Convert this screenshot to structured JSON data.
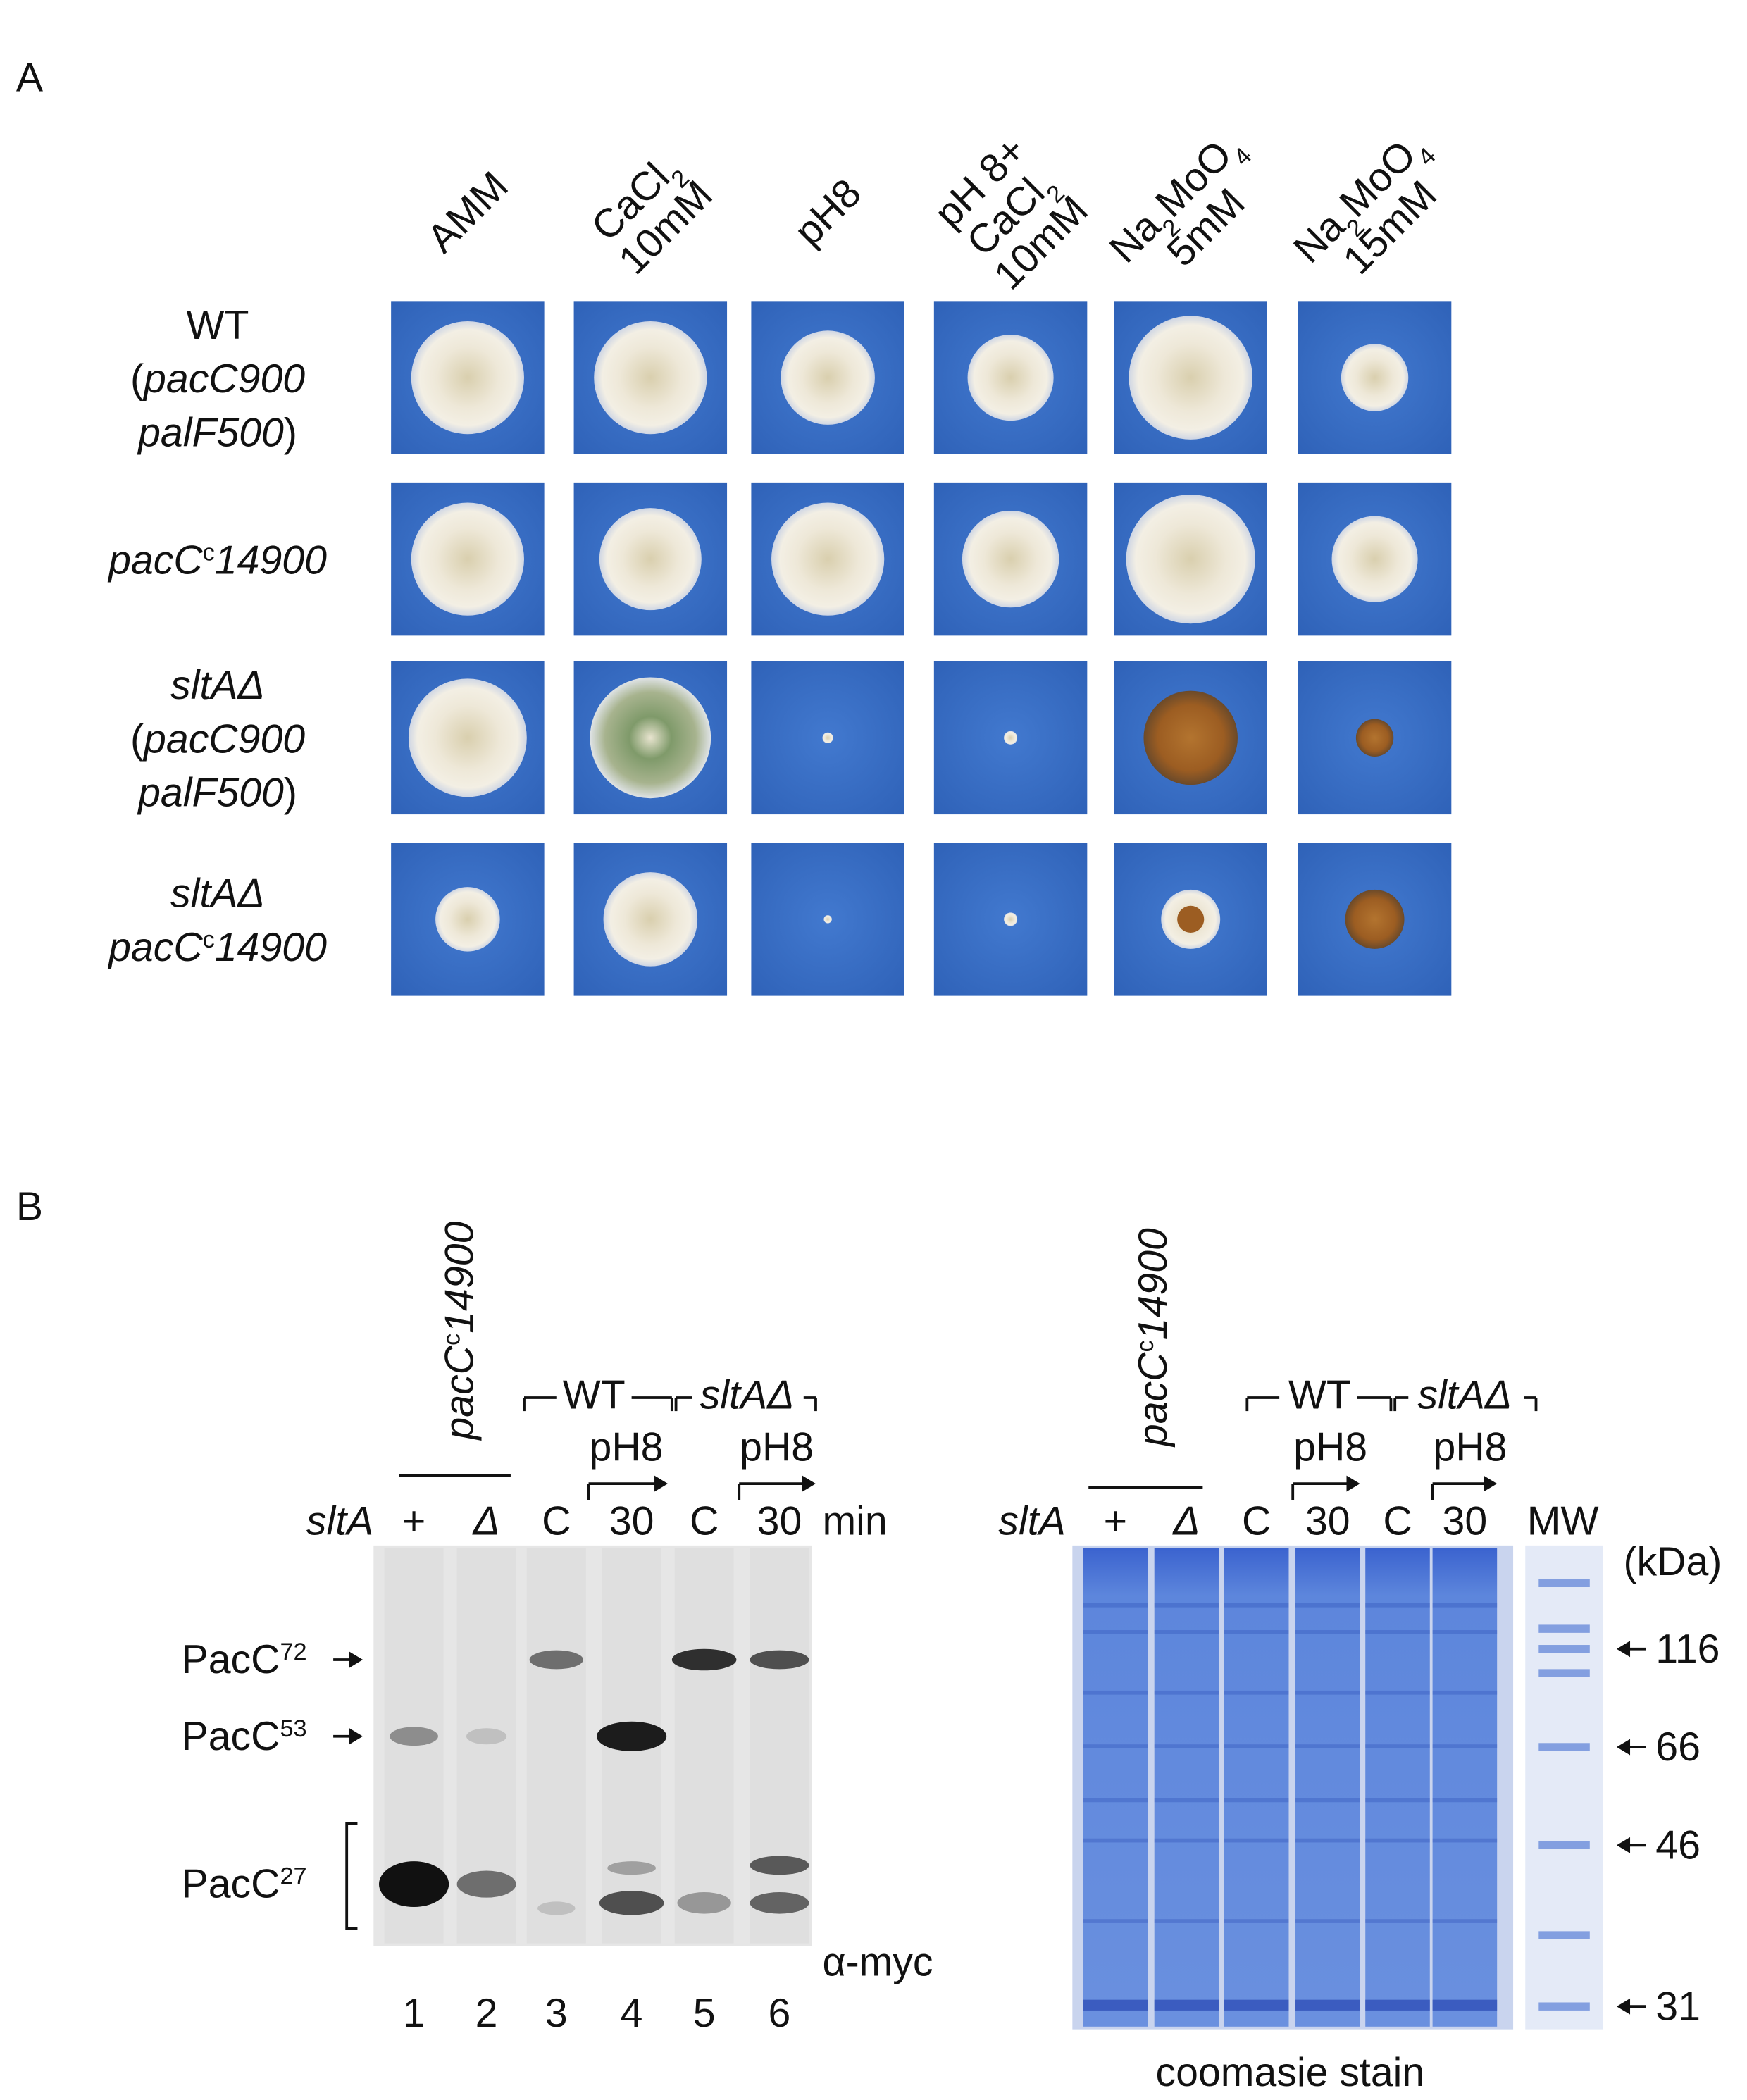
{
  "panel_a": {
    "label": "A",
    "columns": [
      [
        [
          {
            "text": "AMM"
          }
        ]
      ],
      [
        [
          {
            "text": "CaCl"
          },
          {
            "sub": "2"
          }
        ],
        [
          {
            "text": "10mM"
          }
        ]
      ],
      [
        [
          {
            "text": "pH8"
          }
        ]
      ],
      [
        [
          {
            "text": "pH 8+"
          }
        ],
        [
          {
            "text": "CaCl"
          },
          {
            "sub": "2"
          }
        ],
        [
          {
            "text": "10mM"
          }
        ]
      ],
      [
        [
          {
            "text": "Na"
          },
          {
            "sub": "2"
          },
          {
            "text": "MoO"
          },
          {
            "sub": "4"
          }
        ],
        [
          {
            "text": "5mM"
          }
        ]
      ],
      [
        [
          {
            "text": "Na"
          },
          {
            "sub": "2"
          },
          {
            "text": "MoO"
          },
          {
            "sub": "4"
          }
        ],
        [
          {
            "text": "15mM"
          }
        ]
      ]
    ],
    "rows": [
      [
        [
          {
            "text": "WT"
          }
        ],
        [
          {
            "text": "("
          },
          {
            "italic": "pacC900"
          }
        ],
        [
          {
            "italic": "palF500"
          },
          {
            "text": ")"
          }
        ]
      ],
      [
        [
          {
            "italic": "pacC"
          },
          {
            "sup": "c"
          },
          {
            "italic": "14900"
          }
        ]
      ],
      [
        [
          {
            "italic": "sltAΔ"
          }
        ],
        [
          {
            "text": "("
          },
          {
            "italic": "pacC900"
          }
        ],
        [
          {
            "italic": "palF500"
          },
          {
            "text": ")"
          }
        ]
      ],
      [
        [
          {
            "italic": "sltAΔ"
          }
        ],
        [
          {
            "italic": "pacC"
          },
          {
            "sup": "c"
          },
          {
            "italic": "14900"
          }
        ]
      ]
    ]
  },
  "panel_b": {
    "label": "B",
    "western": {
      "construct": [
        {
          "italic": "pacC"
        },
        {
          "sup": "c"
        },
        {
          "italic": "14900"
        }
      ],
      "groups": [
        [
          {
            "text": "WT"
          }
        ],
        [
          {
            "italic": "sltAΔ"
          }
        ]
      ],
      "treatment": [
        "pH8",
        "pH8"
      ],
      "row_label": [
        {
          "italic": "sltA"
        }
      ],
      "lanes": [
        [
          {
            "text": "+"
          }
        ],
        [
          {
            "italic": "Δ"
          }
        ],
        [
          {
            "text": "C"
          }
        ],
        [
          {
            "text": "30"
          }
        ],
        [
          {
            "text": "C"
          }
        ],
        [
          {
            "text": "30"
          }
        ]
      ],
      "time_unit": "min",
      "bands": [
        [
          {
            "text": "PacC"
          },
          {
            "sup": "72"
          }
        ],
        [
          {
            "text": "PacC"
          },
          {
            "sup": "53"
          }
        ],
        [
          {
            "text": "PacC"
          },
          {
            "sup": "27"
          }
        ]
      ],
      "antibody": "α-myc",
      "lane_numbers": [
        "1",
        "2",
        "3",
        "4",
        "5",
        "6"
      ]
    },
    "coomassie": {
      "construct": [
        {
          "italic": "pacC"
        },
        {
          "sup": "c"
        },
        {
          "italic": "14900"
        }
      ],
      "groups": [
        [
          {
            "text": "WT"
          }
        ],
        [
          {
            "italic": "sltAΔ"
          }
        ]
      ],
      "treatment": [
        "pH8",
        "pH8"
      ],
      "row_label": [
        {
          "italic": "sltA"
        }
      ],
      "lanes": [
        [
          {
            "text": "+"
          }
        ],
        [
          {
            "italic": "Δ"
          }
        ],
        [
          {
            "text": "C"
          }
        ],
        [
          {
            "text": "30"
          }
        ],
        [
          {
            "text": "C"
          }
        ],
        [
          {
            "text": "30"
          }
        ]
      ],
      "marker_lane": "MW",
      "unit": "(kDa)",
      "markers": [
        "116",
        "66",
        "46",
        "31"
      ],
      "caption": "coomasie stain"
    }
  }
}
